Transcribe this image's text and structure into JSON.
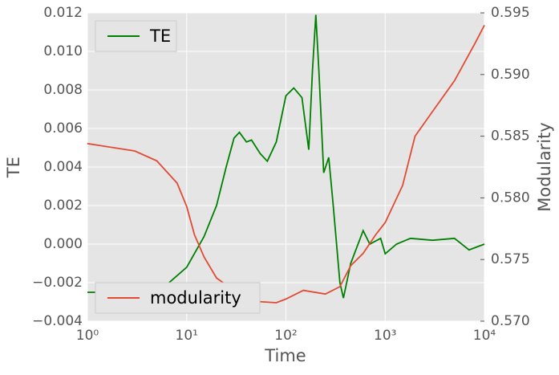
{
  "chart_data": {
    "type": "line",
    "xlabel": "Time",
    "ylabel": "TE",
    "y2label": "Modularity",
    "xscale": "log",
    "grid": true,
    "xlim": [
      1,
      10000
    ],
    "xticks": [
      {
        "value": 1,
        "label": "10⁰"
      },
      {
        "value": 10,
        "label": "10¹"
      },
      {
        "value": 100,
        "label": "10²"
      },
      {
        "value": 1000,
        "label": "10³"
      },
      {
        "value": 10000,
        "label": "10⁴"
      }
    ],
    "ylim": [
      -0.004,
      0.012
    ],
    "yticks": [
      {
        "value": -0.004,
        "label": "−0.004"
      },
      {
        "value": -0.002,
        "label": "−0.002"
      },
      {
        "value": 0,
        "label": "0.000"
      },
      {
        "value": 0.002,
        "label": "0.002"
      },
      {
        "value": 0.004,
        "label": "0.004"
      },
      {
        "value": 0.006,
        "label": "0.006"
      },
      {
        "value": 0.008,
        "label": "0.008"
      },
      {
        "value": 0.01,
        "label": "0.010"
      },
      {
        "value": 0.012,
        "label": "0.012"
      }
    ],
    "y2lim": [
      0.57,
      0.595
    ],
    "y2ticks": [
      {
        "value": 0.57,
        "label": "0.570"
      },
      {
        "value": 0.575,
        "label": "0.575"
      },
      {
        "value": 0.58,
        "label": "0.580"
      },
      {
        "value": 0.585,
        "label": "0.585"
      },
      {
        "value": 0.59,
        "label": "0.590"
      },
      {
        "value": 0.595,
        "label": "0.595"
      }
    ],
    "series": [
      {
        "name": "TE",
        "color": "#008000",
        "legend_loc": "upper left",
        "x": [
          1,
          3,
          6,
          10,
          15,
          20,
          25,
          30,
          34,
          40,
          45,
          55,
          65,
          80,
          100,
          120,
          145,
          170,
          185,
          200,
          215,
          240,
          270,
          300,
          350,
          380,
          450,
          600,
          700,
          900,
          1000,
          1300,
          1800,
          3000,
          5000,
          7000,
          10000
        ],
        "values": [
          -0.0025,
          -0.0025,
          -0.0022,
          -0.0012,
          0.0004,
          0.002,
          0.004,
          0.0055,
          0.0058,
          0.0053,
          0.0054,
          0.0047,
          0.0043,
          0.0053,
          0.0077,
          0.0081,
          0.0076,
          0.0049,
          0.009,
          0.0119,
          0.009,
          0.0037,
          0.0045,
          0.002,
          -0.002,
          -0.0028,
          -0.001,
          0.0007,
          0,
          0.0003,
          -0.0005,
          0,
          0.0003,
          0.0002,
          0.0003,
          -0.0003,
          0
        ]
      },
      {
        "name": "modularity",
        "color": "#e24a33",
        "axis": "y2",
        "legend_loc": "lower left",
        "x": [
          1,
          3,
          5,
          8,
          10,
          12,
          15,
          20,
          30,
          50,
          80,
          100,
          150,
          250,
          350,
          450,
          600,
          800,
          1000,
          1500,
          2000,
          3000,
          5000,
          8000,
          10000
        ],
        "values": [
          0.5844,
          0.5838,
          0.583,
          0.5812,
          0.5793,
          0.577,
          0.5752,
          0.5735,
          0.5725,
          0.5716,
          0.5715,
          0.5718,
          0.5725,
          0.5722,
          0.5728,
          0.5745,
          0.5755,
          0.577,
          0.578,
          0.581,
          0.585,
          0.587,
          0.5895,
          0.5925,
          0.594
        ]
      }
    ]
  }
}
